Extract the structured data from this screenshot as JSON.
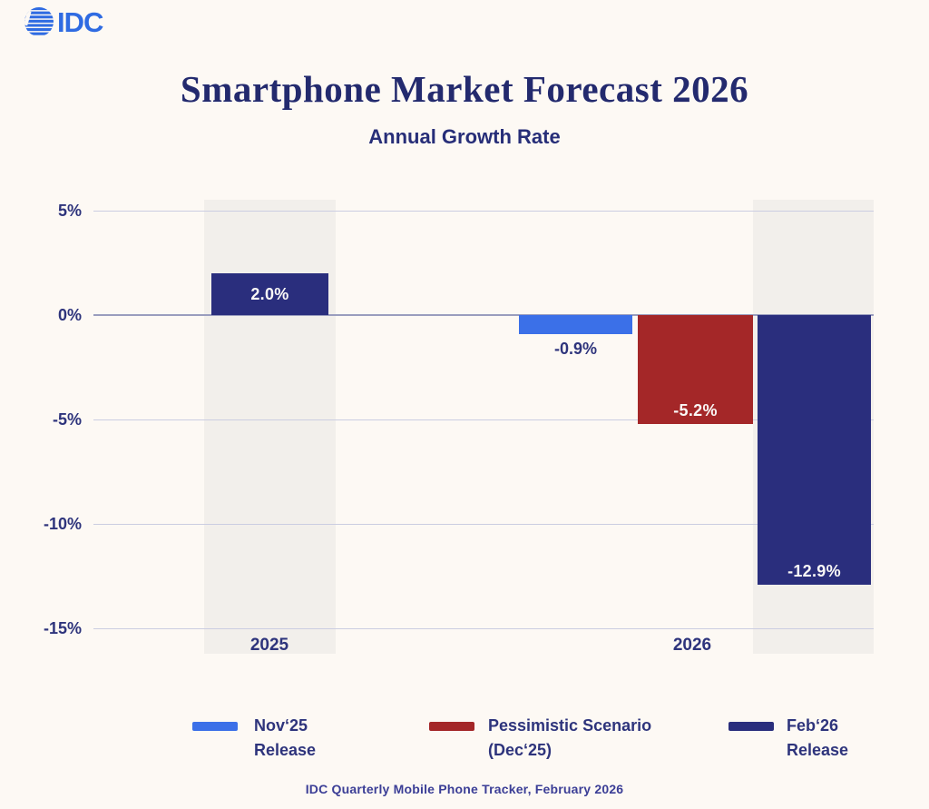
{
  "logo": {
    "text": "IDC"
  },
  "header": {
    "title": "Smartphone Market Forecast 2026",
    "subtitle": "Annual Growth Rate"
  },
  "axis": {
    "x_labels": [
      "2025",
      "2026"
    ]
  },
  "legend": [
    {
      "line1": "Nov‘25",
      "line2": "Release",
      "color": "#3B70E8"
    },
    {
      "line1": "Pessimistic Scenario",
      "line2": "(Dec‘25)",
      "color": "#A42728"
    },
    {
      "line1": "Feb‘26",
      "line2": "Release",
      "color": "#2A2E7D"
    }
  ],
  "footer": {
    "source": "IDC Quarterly Mobile Phone Tracker, February 2026"
  },
  "chart_data": {
    "type": "bar",
    "title": "Smartphone Market Forecast 2026",
    "subtitle": "Annual Growth Rate",
    "xlabel": "",
    "ylabel": "",
    "categories": [
      "2025",
      "2026"
    ],
    "series": [
      {
        "name": "Nov‘25 Release",
        "color": "#3B70E8",
        "values": [
          null,
          -0.9
        ]
      },
      {
        "name": "Pessimistic Scenario (Dec‘25)",
        "color": "#A42728",
        "values": [
          null,
          -5.2
        ]
      },
      {
        "name": "Feb‘26 Release",
        "color": "#2A2E7D",
        "values": [
          2.0,
          -12.9
        ]
      }
    ],
    "bars": [
      {
        "category": "2025",
        "series": "Feb‘26 Release",
        "value": 2.0,
        "label": "2.0%",
        "color": "#2A2E7D",
        "label_placement": "inside-center"
      },
      {
        "category": "2026",
        "series": "Nov‘25 Release",
        "value": -0.9,
        "label": "-0.9%",
        "color": "#3B70E8",
        "label_placement": "below"
      },
      {
        "category": "2026",
        "series": "Pessimistic Scenario (Dec‘25)",
        "value": -5.2,
        "label": "-5.2%",
        "color": "#A42728",
        "label_placement": "inside-bottom"
      },
      {
        "category": "2026",
        "series": "Feb‘26 Release",
        "value": -12.9,
        "label": "-12.9%",
        "color": "#2A2E7D",
        "label_placement": "inside-bottom"
      }
    ],
    "ticks": [
      {
        "label": "5%",
        "value": 5
      },
      {
        "label": "0%",
        "value": 0
      },
      {
        "label": "-5%",
        "value": -5
      },
      {
        "label": "-10%",
        "value": -10
      },
      {
        "label": "-15%",
        "value": -15
      }
    ],
    "ylim": [
      -15.5,
      5.5
    ],
    "grid": true,
    "legend_position": "bottom",
    "source": "IDC Quarterly Mobile Phone Tracker, February 2026"
  }
}
